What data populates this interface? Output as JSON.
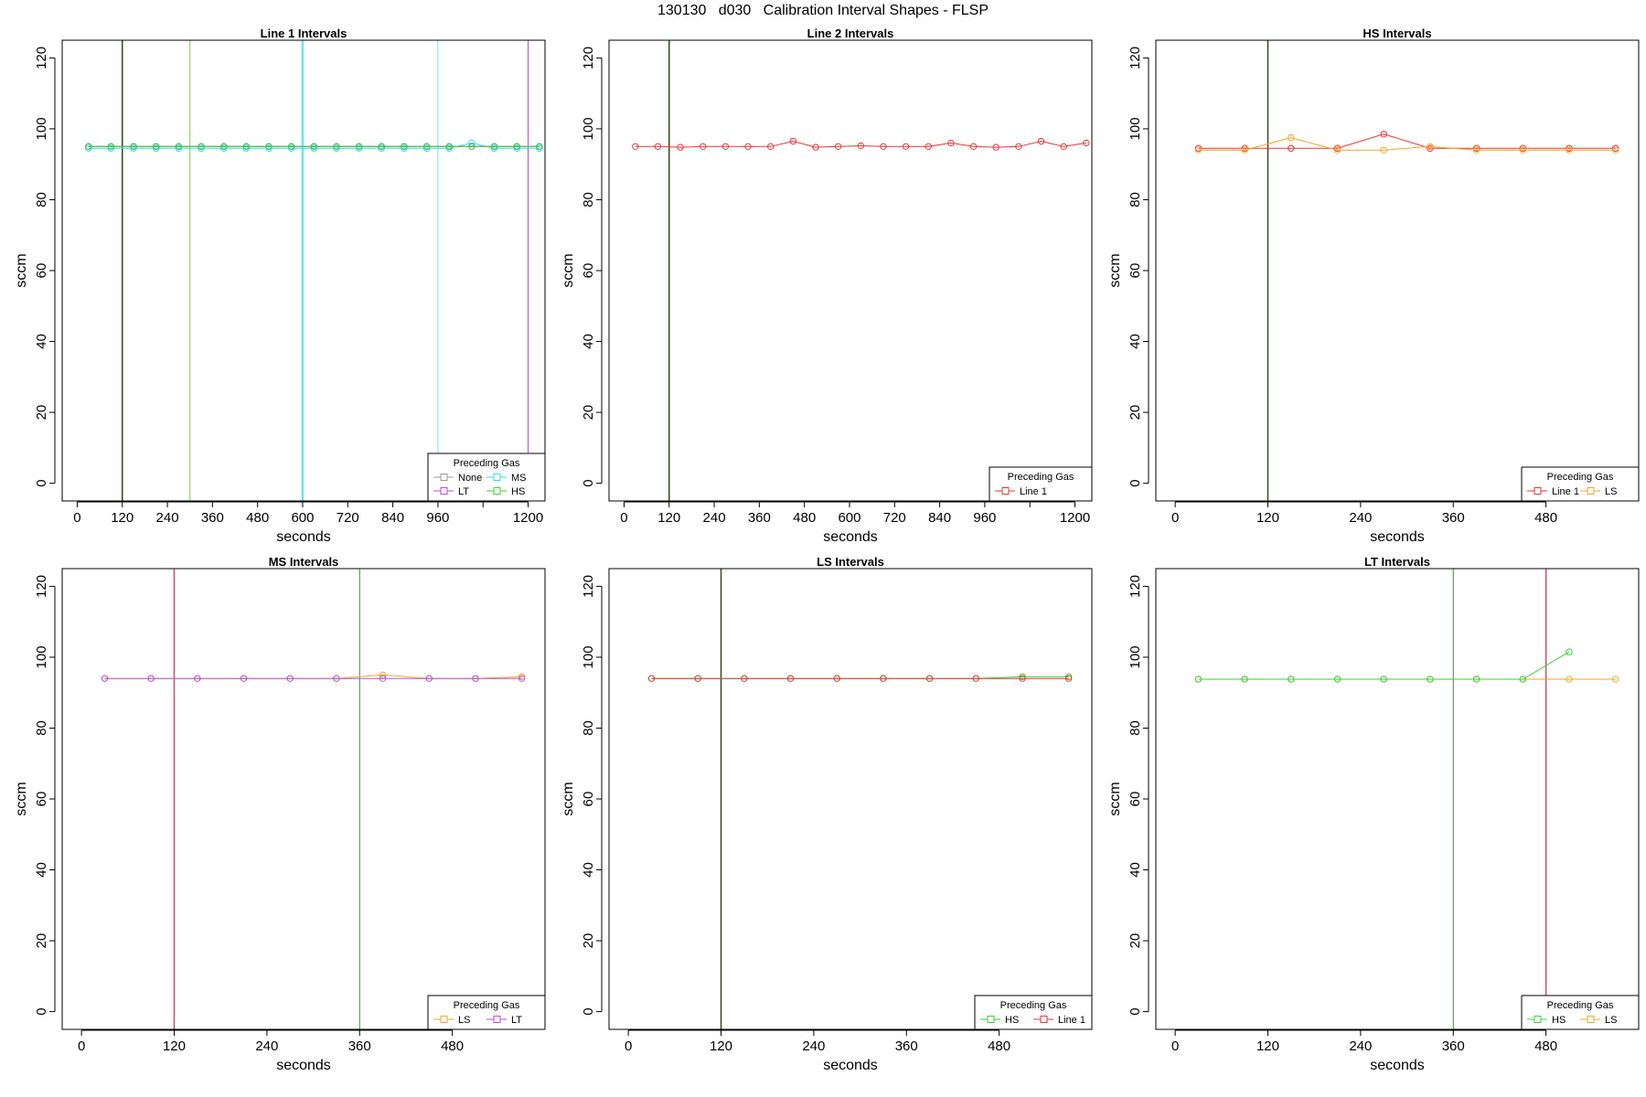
{
  "figure_title": "130130   d030   Calibration Interval Shapes - FLSP",
  "legend_title": "Preceding Gas",
  "colors": {
    "None": "#999999",
    "MS": "#33e0e8",
    "LT": "#b44fe0",
    "HS": "#3ad13a",
    "Line 1": "#ee3333",
    "LS": "#f5a623",
    "vline_dark": "#2d4d1a",
    "vline_red": "#c8506a",
    "vline_green": "#3a8a3a",
    "vline_lime": "#7ad13a",
    "vline_cyan": "#66e8f0",
    "vline_purple": "#b44fe0"
  },
  "chart_data": [
    {
      "type": "line",
      "title": "Line 1 Intervals",
      "xlabel": "seconds",
      "ylabel": "sccm",
      "xlim": [
        -40,
        1245
      ],
      "ylim": [
        -5,
        125
      ],
      "xticks": [
        0,
        120,
        240,
        360,
        480,
        600,
        720,
        840,
        960,
        1080,
        1200
      ],
      "xtick_labels": [
        "0",
        "120",
        "240",
        "360",
        "480",
        "600",
        "720",
        "840",
        "960",
        "",
        "1200"
      ],
      "yticks": [
        0,
        20,
        40,
        60,
        80,
        100,
        120
      ],
      "legend": {
        "position": "bottom-right",
        "columns": 2,
        "entries": [
          "None",
          "MS",
          "LT",
          "HS"
        ]
      },
      "vlines": [
        {
          "x": 120,
          "color": "vline_dark",
          "width": 1.5
        },
        {
          "x": 300,
          "color": "vline_lime",
          "width": 1
        },
        {
          "x": 600,
          "color": "vline_cyan",
          "width": 2.5
        },
        {
          "x": 960,
          "color": "vline_cyan",
          "width": 1
        },
        {
          "x": 1200,
          "color": "vline_purple",
          "width": 1
        }
      ],
      "series": [
        {
          "name": "None",
          "x": [
            30,
            90,
            150,
            210,
            270,
            330,
            390,
            450,
            510,
            570,
            630,
            690,
            750,
            810,
            870,
            930,
            990,
            1050,
            1110,
            1170,
            1230
          ],
          "y": [
            95,
            95,
            95,
            95,
            95,
            95,
            95,
            95,
            95,
            95,
            95,
            95,
            95,
            95,
            95,
            95,
            95,
            95,
            95,
            95,
            95
          ]
        },
        {
          "name": "MS",
          "x": [
            30,
            90,
            150,
            210,
            270,
            330,
            390,
            450,
            510,
            570,
            630,
            690,
            750,
            810,
            870,
            930,
            990,
            1050,
            1110,
            1170,
            1230
          ],
          "y": [
            94.5,
            94.5,
            94.5,
            94.5,
            94.5,
            94.5,
            94.5,
            94.5,
            94.5,
            94.5,
            94.5,
            94.5,
            94.5,
            94.5,
            94.5,
            94.5,
            94.5,
            96,
            94.5,
            94.5,
            94.5
          ]
        },
        {
          "name": "LT",
          "x": [
            30,
            90,
            150,
            210,
            270,
            330,
            390,
            450,
            510,
            570,
            630,
            690,
            750,
            810,
            870,
            930,
            990,
            1050,
            1110,
            1170,
            1230
          ],
          "y": [
            95,
            95,
            95,
            95,
            95,
            95,
            95,
            95,
            95,
            95,
            95,
            95,
            95,
            95,
            95,
            95,
            95,
            95,
            95,
            95,
            95
          ]
        },
        {
          "name": "HS",
          "x": [
            30,
            90,
            150,
            210,
            270,
            330,
            390,
            450,
            510,
            570,
            630,
            690,
            750,
            810,
            870,
            930,
            990,
            1050,
            1110,
            1170,
            1230
          ],
          "y": [
            95,
            95,
            95,
            95,
            95,
            95,
            95,
            95,
            95,
            95,
            95,
            95,
            95,
            95,
            95,
            95,
            95,
            95,
            95,
            95,
            95
          ]
        }
      ]
    },
    {
      "type": "line",
      "title": "Line 2 Intervals",
      "xlabel": "seconds",
      "ylabel": "sccm",
      "xlim": [
        -40,
        1245
      ],
      "ylim": [
        -5,
        125
      ],
      "xticks": [
        0,
        120,
        240,
        360,
        480,
        600,
        720,
        840,
        960,
        1080,
        1200
      ],
      "xtick_labels": [
        "0",
        "120",
        "240",
        "360",
        "480",
        "600",
        "720",
        "840",
        "960",
        "",
        "1200"
      ],
      "yticks": [
        0,
        20,
        40,
        60,
        80,
        100,
        120
      ],
      "legend": {
        "position": "bottom-right",
        "columns": 1,
        "entries": [
          "Line 1"
        ]
      },
      "vlines": [
        {
          "x": 120,
          "color": "vline_dark",
          "width": 1.5
        }
      ],
      "series": [
        {
          "name": "Line 1",
          "x": [
            30,
            90,
            150,
            210,
            270,
            330,
            390,
            450,
            510,
            570,
            630,
            690,
            750,
            810,
            870,
            930,
            990,
            1050,
            1110,
            1170,
            1230
          ],
          "y": [
            95,
            95,
            94.8,
            95,
            95,
            95,
            95,
            96.5,
            94.8,
            95,
            95.2,
            95,
            95,
            95,
            96,
            95,
            94.8,
            95,
            96.5,
            95,
            96
          ]
        }
      ]
    },
    {
      "type": "line",
      "title": "HS Intervals",
      "xlabel": "seconds",
      "ylabel": "sccm",
      "xlim": [
        -25,
        600
      ],
      "ylim": [
        -5,
        125
      ],
      "xticks": [
        0,
        120,
        240,
        360,
        480
      ],
      "xtick_labels": [
        "0",
        "120",
        "240",
        "360",
        "480"
      ],
      "yticks": [
        0,
        20,
        40,
        60,
        80,
        100,
        120
      ],
      "legend": {
        "position": "bottom-right",
        "columns": 2,
        "entries": [
          "Line 1",
          "LS"
        ]
      },
      "vlines": [
        {
          "x": 120,
          "color": "vline_dark",
          "width": 1.5
        }
      ],
      "series": [
        {
          "name": "Line 1",
          "x": [
            30,
            90,
            150,
            210,
            270,
            330,
            390,
            450,
            510,
            570
          ],
          "y": [
            94.5,
            94.5,
            94.5,
            94.5,
            98.5,
            94.5,
            94.5,
            94.5,
            94.5,
            94.5
          ]
        },
        {
          "name": "LS",
          "x": [
            30,
            90,
            150,
            210,
            270,
            330,
            390,
            450,
            510,
            570
          ],
          "y": [
            94,
            94,
            97.5,
            94,
            94,
            95,
            94,
            94,
            94,
            94
          ]
        }
      ]
    },
    {
      "type": "line",
      "title": "MS Intervals",
      "xlabel": "seconds",
      "ylabel": "sccm",
      "xlim": [
        -25,
        600
      ],
      "ylim": [
        -5,
        125
      ],
      "xticks": [
        0,
        120,
        240,
        360,
        480
      ],
      "xtick_labels": [
        "0",
        "120",
        "240",
        "360",
        "480"
      ],
      "yticks": [
        0,
        20,
        40,
        60,
        80,
        100,
        120
      ],
      "legend": {
        "position": "bottom-right",
        "columns": 2,
        "entries": [
          "LS",
          "LT"
        ]
      },
      "vlines": [
        {
          "x": 120,
          "color": "vline_red",
          "width": 1.5
        },
        {
          "x": 360,
          "color": "vline_green",
          "width": 1
        }
      ],
      "series": [
        {
          "name": "LS",
          "x": [
            30,
            90,
            150,
            210,
            270,
            330,
            390,
            450,
            510,
            570
          ],
          "y": [
            94,
            94,
            94,
            94,
            94,
            94,
            95,
            94,
            94,
            94.5
          ]
        },
        {
          "name": "LT",
          "x": [
            30,
            90,
            150,
            210,
            270,
            330,
            390,
            450,
            510,
            570
          ],
          "y": [
            94,
            94,
            94,
            94,
            94,
            94,
            94,
            94,
            94,
            94
          ]
        }
      ]
    },
    {
      "type": "line",
      "title": "LS Intervals",
      "xlabel": "seconds",
      "ylabel": "sccm",
      "xlim": [
        -25,
        600
      ],
      "ylim": [
        -5,
        125
      ],
      "xticks": [
        0,
        120,
        240,
        360,
        480
      ],
      "xtick_labels": [
        "0",
        "120",
        "240",
        "360",
        "480"
      ],
      "yticks": [
        0,
        20,
        40,
        60,
        80,
        100,
        120
      ],
      "legend": {
        "position": "bottom-right",
        "columns": 2,
        "entries": [
          "HS",
          "Line 1"
        ]
      },
      "vlines": [
        {
          "x": 120,
          "color": "vline_dark",
          "width": 1.5
        }
      ],
      "series": [
        {
          "name": "HS",
          "x": [
            30,
            90,
            150,
            210,
            270,
            330,
            390,
            450,
            510,
            570
          ],
          "y": [
            94,
            94,
            94,
            94,
            94,
            94,
            94,
            94,
            94.5,
            94.5
          ]
        },
        {
          "name": "Line 1",
          "x": [
            30,
            90,
            150,
            210,
            270,
            330,
            390,
            450,
            510,
            570
          ],
          "y": [
            94,
            94,
            94,
            94,
            94,
            94,
            94,
            94,
            94,
            94
          ]
        }
      ]
    },
    {
      "type": "line",
      "title": "LT Intervals",
      "xlabel": "seconds",
      "ylabel": "sccm",
      "xlim": [
        -25,
        600
      ],
      "ylim": [
        -5,
        125
      ],
      "xticks": [
        0,
        120,
        240,
        360,
        480
      ],
      "xtick_labels": [
        "0",
        "120",
        "240",
        "360",
        "480"
      ],
      "yticks": [
        0,
        20,
        40,
        60,
        80,
        100,
        120
      ],
      "legend": {
        "position": "bottom-right",
        "columns": 2,
        "entries": [
          "HS",
          "LS"
        ]
      },
      "vlines": [
        {
          "x": 360,
          "color": "vline_green",
          "width": 1
        },
        {
          "x": 480,
          "color": "vline_red",
          "width": 1.5
        }
      ],
      "series": [
        {
          "name": "LS",
          "x": [
            30,
            90,
            150,
            210,
            270,
            330,
            390,
            450,
            510,
            570
          ],
          "y": [
            93.8,
            93.8,
            93.8,
            93.8,
            93.8,
            93.8,
            93.8,
            93.8,
            93.8,
            93.8
          ]
        },
        {
          "name": "HS",
          "x": [
            30,
            90,
            150,
            210,
            270,
            330,
            390,
            450,
            510
          ],
          "y": [
            93.8,
            93.8,
            93.8,
            93.8,
            93.8,
            93.8,
            93.8,
            93.8,
            101.5
          ]
        }
      ]
    }
  ]
}
